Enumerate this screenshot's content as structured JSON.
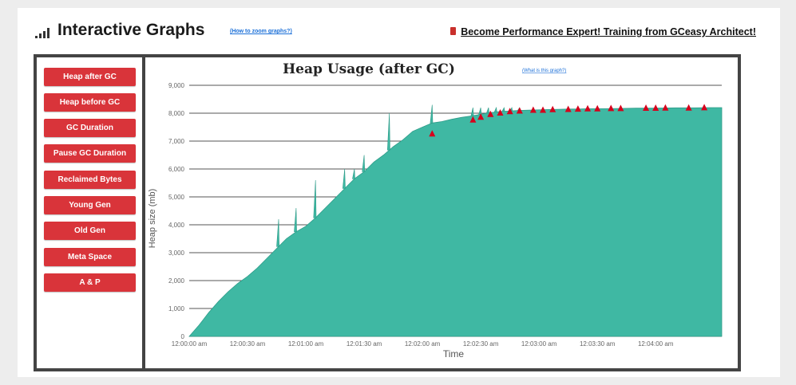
{
  "header": {
    "title": "Interactive Graphs",
    "zoom_link": "(How to zoom graphs?)",
    "promo": "Become Performance Expert! Training from GCeasy Architect!"
  },
  "sidebar": {
    "items": [
      {
        "label": "Heap after GC"
      },
      {
        "label": "Heap before GC"
      },
      {
        "label": "GC Duration"
      },
      {
        "label": "Pause GC Duration"
      },
      {
        "label": "Reclaimed Bytes"
      },
      {
        "label": "Young Gen"
      },
      {
        "label": "Old Gen"
      },
      {
        "label": "Meta Space"
      },
      {
        "label": "A & P"
      }
    ]
  },
  "colors": {
    "area_fill": "#3fb8a3",
    "marker": "#d6001c",
    "button": "#d9343a",
    "grid": "#555555"
  },
  "chart_data": {
    "type": "area",
    "title": "Heap Usage (after GC)",
    "help_link": "(What is this graph?)",
    "xlabel": "Time",
    "ylabel": "Heap size (mb)",
    "ylim": [
      0,
      9000
    ],
    "y_ticks": [
      "0",
      "1,000",
      "2,000",
      "3,000",
      "4,000",
      "5,000",
      "6,000",
      "7,000",
      "8,000",
      "9,000"
    ],
    "x_ticks": [
      "12:00:00 am",
      "12:00:30 am",
      "12:01:00 am",
      "12:01:30 am",
      "12:02:00 am",
      "12:02:30 am",
      "12:03:00 am",
      "12:03:30 am",
      "12:04:00 am"
    ],
    "x_range_seconds": [
      0,
      274
    ],
    "grid": true,
    "series": [
      {
        "points": [
          [
            0,
            0
          ],
          [
            5,
            400
          ],
          [
            10,
            850
          ],
          [
            15,
            1250
          ],
          [
            20,
            1600
          ],
          [
            25,
            1900
          ],
          [
            30,
            2150
          ],
          [
            35,
            2450
          ],
          [
            40,
            2800
          ],
          [
            45,
            3150
          ],
          [
            50,
            3500
          ],
          [
            55,
            3750
          ],
          [
            60,
            3950
          ],
          [
            65,
            4250
          ],
          [
            70,
            4600
          ],
          [
            75,
            4950
          ],
          [
            80,
            5300
          ],
          [
            85,
            5650
          ],
          [
            90,
            5900
          ],
          [
            95,
            6250
          ],
          [
            100,
            6500
          ],
          [
            105,
            6800
          ],
          [
            110,
            7050
          ],
          [
            115,
            7350
          ],
          [
            120,
            7500
          ],
          [
            125,
            7650
          ],
          [
            130,
            7700
          ],
          [
            135,
            7780
          ],
          [
            140,
            7850
          ],
          [
            145,
            7900
          ],
          [
            150,
            7960
          ],
          [
            155,
            8020
          ],
          [
            160,
            8060
          ],
          [
            165,
            8080
          ],
          [
            170,
            8100
          ],
          [
            175,
            8110
          ],
          [
            180,
            8120
          ],
          [
            185,
            8130
          ],
          [
            190,
            8140
          ],
          [
            195,
            8150
          ],
          [
            200,
            8150
          ],
          [
            205,
            8160
          ],
          [
            210,
            8160
          ],
          [
            220,
            8170
          ],
          [
            230,
            8180
          ],
          [
            240,
            8180
          ],
          [
            250,
            8190
          ],
          [
            260,
            8190
          ],
          [
            270,
            8200
          ],
          [
            274,
            8200
          ]
        ]
      }
    ],
    "spikes": [
      [
        46,
        4200
      ],
      [
        55,
        4600
      ],
      [
        65,
        5600
      ],
      [
        80,
        6000
      ],
      [
        85,
        6000
      ],
      [
        90,
        6500
      ],
      [
        103,
        8000
      ],
      [
        125,
        8300
      ],
      [
        146,
        8200
      ],
      [
        150,
        8200
      ],
      [
        154,
        8200
      ],
      [
        158,
        8200
      ],
      [
        162,
        8200
      ],
      [
        166,
        8200
      ],
      [
        170,
        8200
      ]
    ],
    "markers": [
      [
        125,
        7250
      ],
      [
        146,
        7750
      ],
      [
        150,
        7850
      ],
      [
        155,
        7950
      ],
      [
        160,
        8000
      ],
      [
        165,
        8050
      ],
      [
        170,
        8070
      ],
      [
        177,
        8100
      ],
      [
        182,
        8100
      ],
      [
        187,
        8120
      ],
      [
        195,
        8130
      ],
      [
        200,
        8140
      ],
      [
        205,
        8150
      ],
      [
        210,
        8150
      ],
      [
        217,
        8160
      ],
      [
        222,
        8160
      ],
      [
        235,
        8170
      ],
      [
        240,
        8170
      ],
      [
        245,
        8180
      ],
      [
        257,
        8180
      ],
      [
        265,
        8190
      ]
    ]
  }
}
